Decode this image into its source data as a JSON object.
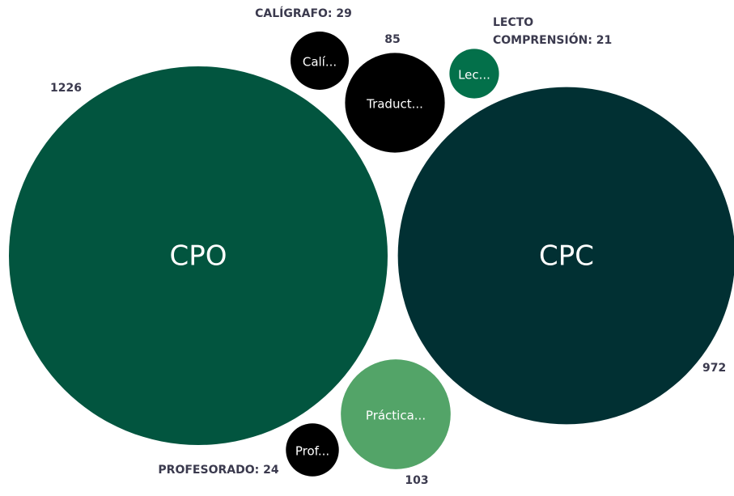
{
  "chart_data": {
    "type": "bubble",
    "categories": [
      "CPO",
      "CPC",
      "Práctica...",
      "Traduct...",
      "Calí...",
      "Prof...",
      "Lec..."
    ],
    "values": [
      1226,
      972,
      103,
      85,
      29,
      24,
      21
    ],
    "value_labels": [
      "1226",
      "972",
      "103",
      "85",
      "CALÍGRAFO: 29",
      "PROFESORADO: 24",
      "LECTO COMPRENSIÓN: 21"
    ],
    "colors": [
      "#02553f",
      "#013033",
      "#53a468",
      "#000000",
      "#000000",
      "#000000",
      "#03704a"
    ]
  }
}
